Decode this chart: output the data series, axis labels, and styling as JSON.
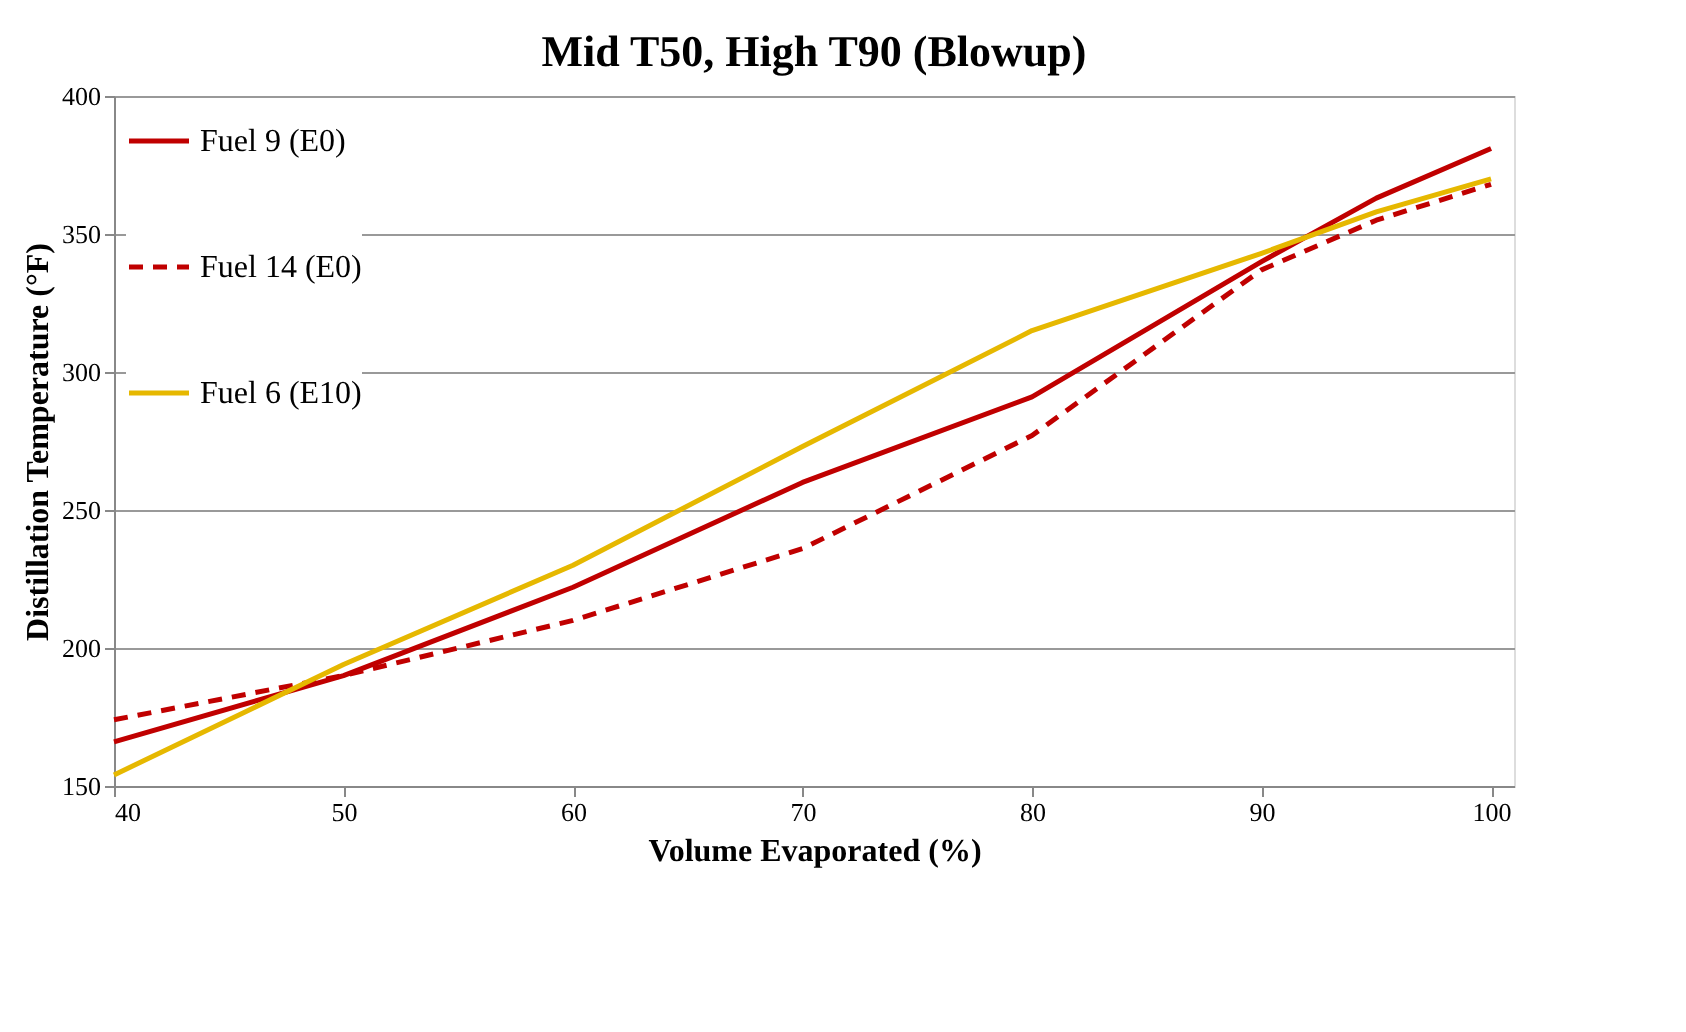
{
  "chart_data": {
    "type": "line",
    "title": "Mid T50, High T90 (Blowup)",
    "xlabel": "Volume Evaporated  (%)",
    "ylabel": "Distillation Temperature (°F)",
    "x": [
      40,
      50,
      60,
      70,
      80,
      90,
      95,
      100
    ],
    "series": [
      {
        "name": "Fuel 9 (E0)",
        "color": "#c00000",
        "line_style": "solid",
        "values": [
          166,
          190,
          222,
          260,
          291,
          340,
          363,
          381
        ]
      },
      {
        "name": "Fuel 14 (E0)",
        "color": "#c00000",
        "line_style": "dashed",
        "values": [
          174,
          190,
          210,
          236,
          277,
          337,
          355,
          368
        ]
      },
      {
        "name": "Fuel 6 (E10)",
        "color": "#e6b800",
        "line_style": "solid",
        "values": [
          154,
          194,
          230,
          273,
          315,
          343,
          358,
          370
        ]
      }
    ],
    "xlim": [
      40,
      101
    ],
    "ylim": [
      150,
      400
    ],
    "xticks": [
      40,
      50,
      60,
      70,
      80,
      90,
      100
    ],
    "yticks": [
      150,
      200,
      250,
      300,
      350,
      400
    ],
    "grid": "y",
    "legend": "top left",
    "marker": "none"
  }
}
